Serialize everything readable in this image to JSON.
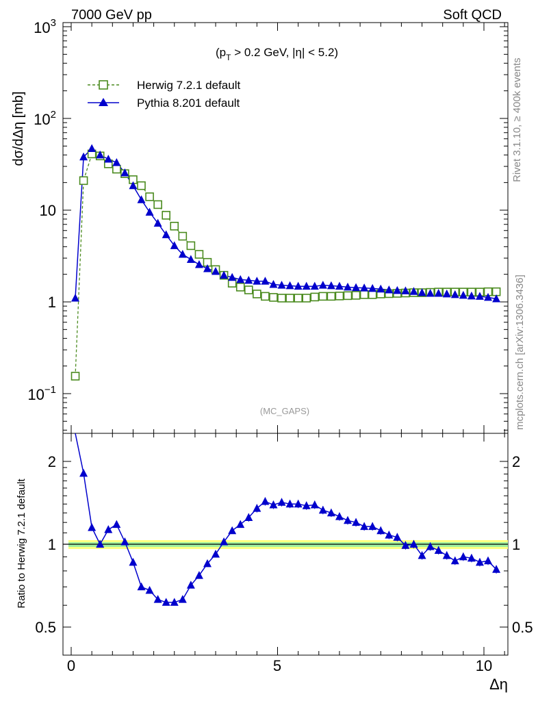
{
  "header": {
    "left": "7000 GeV pp",
    "right": "Soft QCD"
  },
  "side_text": {
    "rivet": "Rivet 3.1.10, ≥ 400k events",
    "mcplots": "mcplots.cern.ch [arXiv:1306.3436]"
  },
  "annotations": {
    "cuts": "(p_T > 0.2 GeV, |η| < 5.2)",
    "analysis": "(MC_GAPS)"
  },
  "colors": {
    "herwig": "#4a8a1e",
    "pythia": "#0000cc",
    "band_outer": "#ffff80",
    "band_inner": "#a0f0a0"
  },
  "chart_data": [
    {
      "type": "line",
      "panel": "main",
      "xlabel": "Δη",
      "ylabel": "dσ/dΔη [mb]",
      "yscale": "log",
      "xlim": [
        -0.2,
        10.55
      ],
      "ylim": [
        0.035,
        1000
      ],
      "y_ticks": [
        "10⁻¹",
        "1",
        "10",
        "10²",
        "10³"
      ],
      "legend": [
        "Herwig 7.2.1 default",
        "Pythia 8.201 default"
      ],
      "legend_position": "top-left",
      "series": [
        {
          "name": "Herwig 7.2.1 default",
          "marker": "open-square",
          "line": "dashed",
          "x": [
            0.1,
            0.3,
            0.5,
            0.7,
            0.9,
            1.1,
            1.3,
            1.5,
            1.7,
            1.9,
            2.1,
            2.3,
            2.5,
            2.7,
            2.9,
            3.1,
            3.3,
            3.5,
            3.7,
            3.9,
            4.1,
            4.3,
            4.5,
            4.7,
            4.9,
            5.1,
            5.3,
            5.5,
            5.7,
            5.9,
            6.1,
            6.3,
            6.5,
            6.7,
            6.9,
            7.1,
            7.3,
            7.5,
            7.7,
            7.9,
            8.1,
            8.3,
            8.5,
            8.7,
            8.9,
            9.1,
            9.3,
            9.5,
            9.7,
            9.9,
            10.1,
            10.3
          ],
          "values": [
            0.155,
            21,
            41,
            39,
            32,
            28,
            25,
            21.5,
            18.5,
            14,
            11.5,
            8.8,
            6.7,
            5.2,
            4.1,
            3.3,
            2.7,
            2.25,
            1.95,
            1.6,
            1.45,
            1.35,
            1.22,
            1.15,
            1.12,
            1.1,
            1.1,
            1.1,
            1.1,
            1.13,
            1.15,
            1.15,
            1.16,
            1.17,
            1.18,
            1.2,
            1.2,
            1.22,
            1.23,
            1.24,
            1.25,
            1.26,
            1.26,
            1.27,
            1.28,
            1.28,
            1.28,
            1.28,
            1.28,
            1.28,
            1.29,
            1.29
          ]
        },
        {
          "name": "Pythia 8.201 default",
          "marker": "filled-triangle",
          "line": "solid",
          "x": [
            0.1,
            0.3,
            0.5,
            0.7,
            0.9,
            1.1,
            1.3,
            1.5,
            1.7,
            1.9,
            2.1,
            2.3,
            2.5,
            2.7,
            2.9,
            3.1,
            3.3,
            3.5,
            3.7,
            3.9,
            4.1,
            4.3,
            4.5,
            4.7,
            4.9,
            5.1,
            5.3,
            5.5,
            5.7,
            5.9,
            6.1,
            6.3,
            6.5,
            6.7,
            6.9,
            7.1,
            7.3,
            7.5,
            7.7,
            7.9,
            8.1,
            8.3,
            8.5,
            8.7,
            8.9,
            9.1,
            9.3,
            9.5,
            9.7,
            9.9,
            10.1,
            10.3
          ],
          "values": [
            1.1,
            38,
            47,
            40,
            36,
            33,
            25.5,
            18.5,
            13,
            9.5,
            7.2,
            5.4,
            4.1,
            3.3,
            2.9,
            2.55,
            2.3,
            2.15,
            1.95,
            1.85,
            1.75,
            1.72,
            1.68,
            1.68,
            1.55,
            1.52,
            1.5,
            1.48,
            1.48,
            1.48,
            1.52,
            1.5,
            1.48,
            1.45,
            1.43,
            1.42,
            1.4,
            1.38,
            1.35,
            1.33,
            1.32,
            1.3,
            1.26,
            1.24,
            1.24,
            1.22,
            1.2,
            1.18,
            1.16,
            1.15,
            1.12,
            1.08
          ]
        }
      ]
    },
    {
      "type": "line",
      "panel": "ratio",
      "xlabel": "Δη",
      "ylabel": "Ratio to Herwig 7.2.1 default",
      "yscale": "log",
      "xlim": [
        -0.2,
        10.55
      ],
      "ylim": [
        0.4,
        2.3
      ],
      "x_ticks": [
        "0",
        "5",
        "10"
      ],
      "y_ticks": [
        "0.5",
        "1",
        "2"
      ],
      "reference": 1,
      "series": [
        {
          "name": "Pythia 8.201 default",
          "x": [
            0.1,
            0.3,
            0.5,
            0.7,
            0.9,
            1.1,
            1.3,
            1.5,
            1.7,
            1.9,
            2.1,
            2.3,
            2.5,
            2.7,
            2.9,
            3.1,
            3.3,
            3.5,
            3.7,
            3.9,
            4.1,
            4.3,
            4.5,
            4.7,
            4.9,
            5.1,
            5.3,
            5.5,
            5.7,
            5.9,
            6.1,
            6.3,
            6.5,
            6.7,
            6.9,
            7.1,
            7.3,
            7.5,
            7.7,
            7.9,
            8.1,
            8.3,
            8.5,
            8.7,
            8.9,
            9.1,
            9.3,
            9.5,
            9.7,
            9.9,
            10.1,
            10.3
          ],
          "values": [
            7.1,
            1.81,
            1.15,
            1.0,
            1.13,
            1.18,
            1.02,
            0.86,
            0.7,
            0.68,
            0.63,
            0.615,
            0.615,
            0.63,
            0.71,
            0.77,
            0.85,
            0.92,
            1.02,
            1.12,
            1.18,
            1.25,
            1.35,
            1.43,
            1.39,
            1.42,
            1.4,
            1.4,
            1.38,
            1.39,
            1.33,
            1.3,
            1.26,
            1.22,
            1.2,
            1.16,
            1.16,
            1.12,
            1.08,
            1.06,
            0.99,
            1.0,
            0.91,
            0.98,
            0.95,
            0.91,
            0.87,
            0.9,
            0.89,
            0.86,
            0.87,
            0.81
          ]
        }
      ]
    }
  ]
}
